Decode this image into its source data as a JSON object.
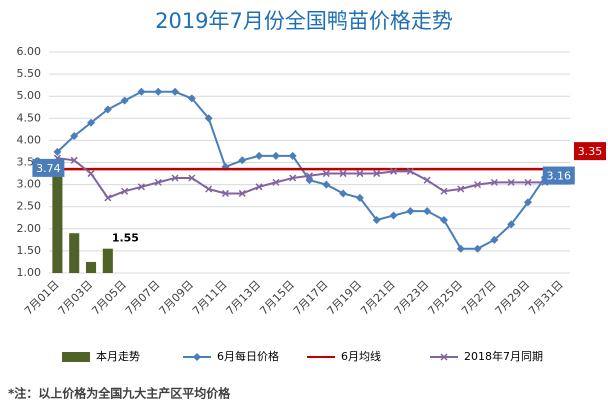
{
  "chart_data": {
    "type": "line",
    "title": "2019年7月份全国鸭苗价格走势",
    "footnote": "*注：以上价格为全国九大主产区平均价格",
    "categories": [
      "7月01日",
      null,
      "7月03日",
      null,
      "7月05日",
      null,
      "7月07日",
      null,
      "7月09日",
      null,
      "7月11日",
      null,
      "7月13日",
      null,
      "7月15日",
      null,
      "7月17日",
      null,
      "7月19日",
      null,
      "7月21日",
      null,
      "7月23日",
      null,
      "7月25日",
      null,
      "7月27日",
      null,
      "7月29日",
      null,
      "7月31日"
    ],
    "ylim": [
      1,
      6
    ],
    "yticks": [
      {
        "value": 1,
        "label": "1.00"
      },
      {
        "value": 1.5,
        "label": "1.50"
      },
      {
        "value": 2,
        "label": "2.00"
      },
      {
        "value": 2.5,
        "label": "2.50"
      },
      {
        "value": 3,
        "label": "3.00"
      },
      {
        "value": 3.5,
        "label": "3.50"
      },
      {
        "value": 4,
        "label": "4.00"
      },
      {
        "value": 4.5,
        "label": "4.50"
      },
      {
        "value": 5,
        "label": "5.00"
      },
      {
        "value": 5.5,
        "label": "5.50"
      },
      {
        "value": 6,
        "label": "6.00"
      }
    ],
    "grid": true,
    "legend": "bottom",
    "series": [
      {
        "name": "本月走势",
        "kind": "bar",
        "color": "#4f6228",
        "values": [
          3.3,
          1.9,
          1.25,
          1.55,
          null,
          null,
          null,
          null,
          null,
          null,
          null,
          null,
          null,
          null,
          null,
          null,
          null,
          null,
          null,
          null,
          null,
          null,
          null,
          null,
          null,
          null,
          null,
          null,
          null,
          null,
          null
        ],
        "value_labels": [
          null,
          null,
          null,
          "1.55",
          null,
          null,
          null,
          null,
          null,
          null,
          null,
          null,
          null,
          null,
          null,
          null,
          null,
          null,
          null,
          null,
          null,
          null,
          null,
          null,
          null,
          null,
          null,
          null,
          null,
          null,
          null
        ]
      },
      {
        "name": "6月每日价格",
        "kind": "line",
        "marker": "diamond",
        "color": "#4a7ebb",
        "values": [
          3.74,
          4.1,
          4.4,
          4.7,
          4.9,
          5.1,
          5.1,
          5.1,
          4.95,
          4.5,
          3.4,
          3.55,
          3.65,
          3.65,
          3.65,
          3.1,
          3.0,
          2.8,
          2.7,
          2.2,
          2.3,
          2.4,
          2.4,
          2.2,
          1.55,
          1.55,
          1.75,
          2.1,
          2.6,
          3.16,
          null
        ],
        "value_labels": [
          "3.74",
          null,
          null,
          null,
          null,
          null,
          null,
          null,
          null,
          null,
          null,
          null,
          null,
          null,
          null,
          null,
          null,
          null,
          null,
          null,
          null,
          null,
          null,
          null,
          null,
          null,
          null,
          null,
          null,
          "3.16",
          null
        ]
      },
      {
        "name": "6月均线",
        "kind": "hline",
        "color": "#c00000",
        "value": 3.35,
        "value_label": "3.35"
      },
      {
        "name": "2018年7月同期",
        "kind": "line",
        "marker": "x",
        "color": "#8064a2",
        "values": [
          3.6,
          3.55,
          3.25,
          2.7,
          2.85,
          2.95,
          3.05,
          3.15,
          3.15,
          2.9,
          2.8,
          2.8,
          2.95,
          3.05,
          3.15,
          3.2,
          3.25,
          3.25,
          3.25,
          3.25,
          3.3,
          3.3,
          3.1,
          2.85,
          2.9,
          3.0,
          3.05,
          3.05,
          3.05,
          3.05,
          3.1
        ]
      }
    ]
  }
}
